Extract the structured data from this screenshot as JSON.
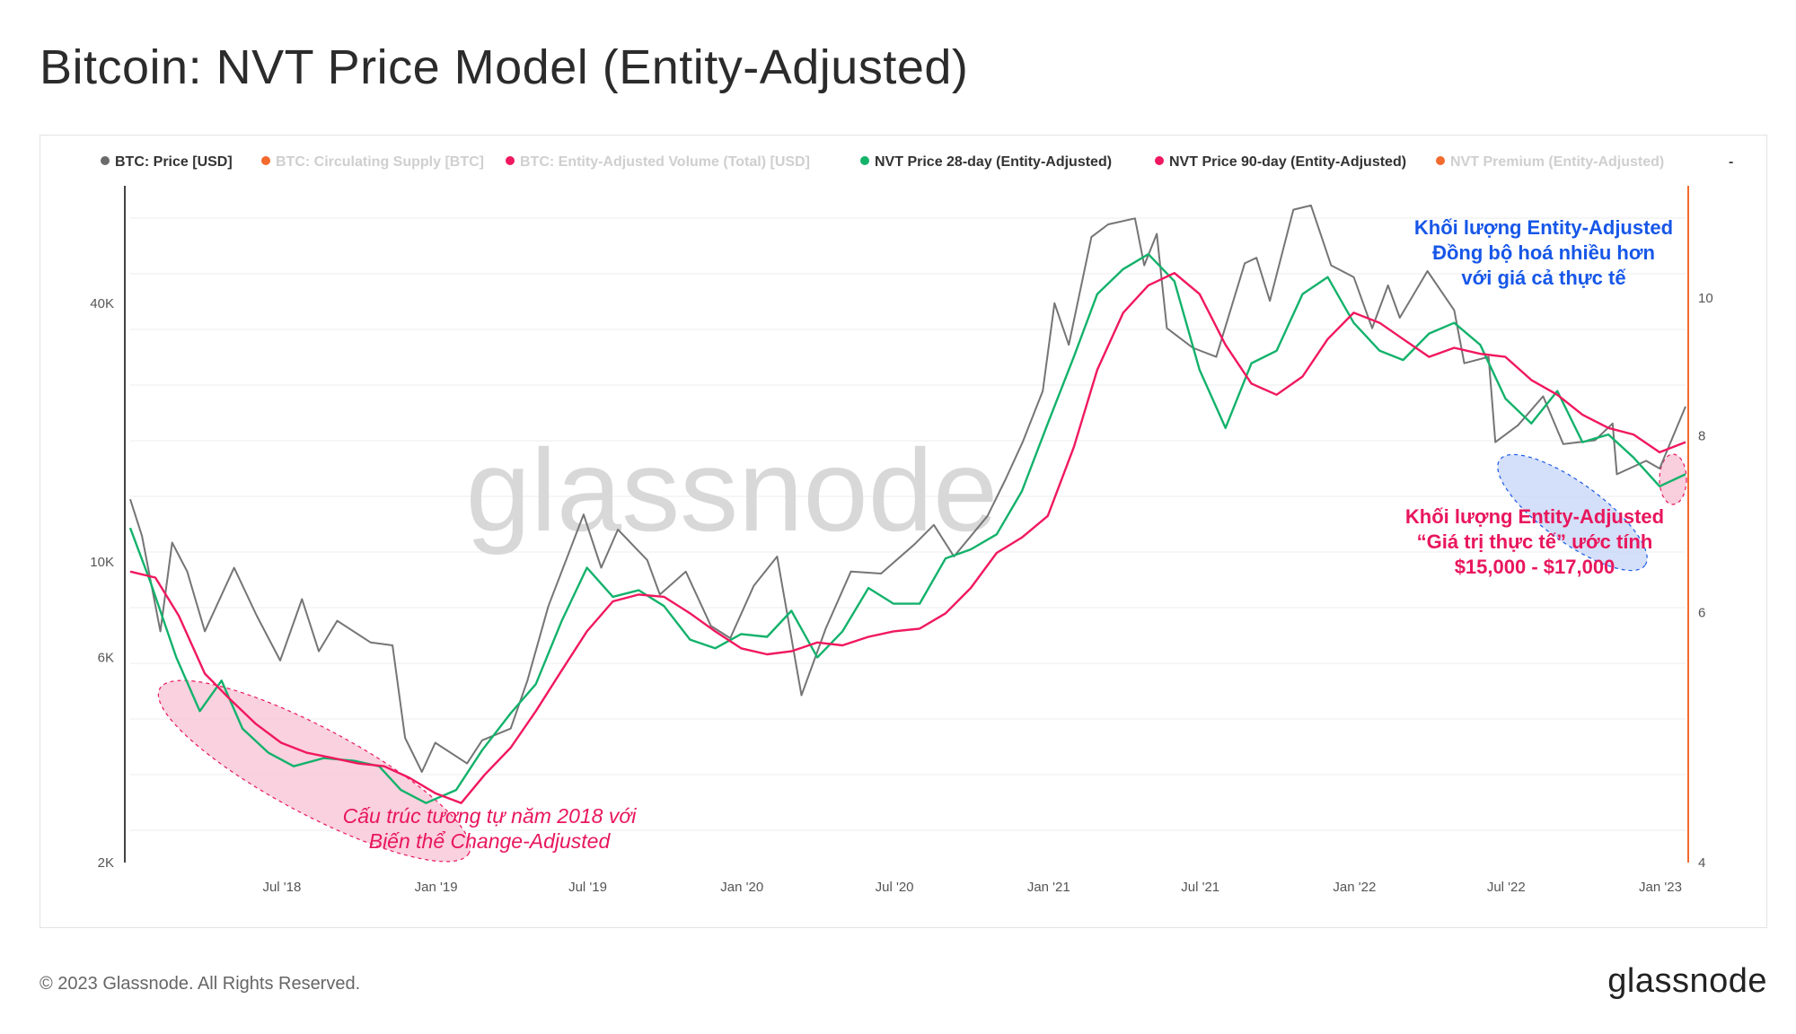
{
  "title": "Bitcoin: NVT Price Model (Entity-Adjusted)",
  "footer": {
    "copyright": "© 2023 Glassnode. All Rights Reserved.",
    "logo": "glassnode"
  },
  "watermark": "glassnode",
  "colors": {
    "price": "#757575",
    "nvt28": "#13b26b",
    "nvt90": "#f0185e",
    "premium_axis": "#f26a2e",
    "blue_anno": "#1757e8",
    "pink_anno": "#e8175d"
  },
  "legend": [
    {
      "label": "BTC: Price [USD]",
      "color": "#6b6b6b",
      "active": true
    },
    {
      "label": "BTC: Circulating Supply [BTC]",
      "color": "#f26a2e",
      "active": false
    },
    {
      "label": "BTC: Entity-Adjusted Volume (Total) [USD]",
      "color": "#f0185e",
      "active": false
    },
    {
      "label": "NVT Price 28-day (Entity-Adjusted)",
      "color": "#13b26b",
      "active": true
    },
    {
      "label": "NVT Price 90-day (Entity-Adjusted)",
      "color": "#f0185e",
      "active": true
    },
    {
      "label": "NVT Premium (Entity-Adjusted)",
      "color": "#f26a2e",
      "active": false
    }
  ],
  "legend_more": "-",
  "annotations": {
    "left_italic": [
      "Cấu trúc tương tự năm 2018 với",
      "Biến thể Change-Adjusted"
    ],
    "blue": [
      "Khối lượng Entity-Adjusted",
      "Đồng bộ hoá nhiều hơn",
      "với giá cả thực tế"
    ],
    "pink": [
      "Khối lượng Entity-Adjusted",
      "“Giá trị thực tế” ước tính",
      "$15,000 -  $17,000"
    ]
  },
  "chart_data": {
    "type": "line",
    "title": "Bitcoin: NVT Price Model (Entity-Adjusted)",
    "y_scale": "log",
    "x_range": [
      "2018-01-01",
      "2023-01-31"
    ],
    "x_ticks": [
      {
        "date": "2018-07-01",
        "label": "Jul '18"
      },
      {
        "date": "2019-01-01",
        "label": "Jan '19"
      },
      {
        "date": "2019-07-01",
        "label": "Jul '19"
      },
      {
        "date": "2020-01-01",
        "label": "Jan '20"
      },
      {
        "date": "2020-07-01",
        "label": "Jul '20"
      },
      {
        "date": "2021-01-01",
        "label": "Jan '21"
      },
      {
        "date": "2021-07-01",
        "label": "Jul '21"
      },
      {
        "date": "2022-01-01",
        "label": "Jan '22"
      },
      {
        "date": "2022-07-01",
        "label": "Jul '22"
      },
      {
        "date": "2023-01-01",
        "label": "Jan '23"
      }
    ],
    "y_left": {
      "scale": "log",
      "range": [
        2000,
        75000
      ],
      "ticks": [
        {
          "v": 2000,
          "label": "2K"
        },
        {
          "v": 6000,
          "label": "6K"
        },
        {
          "v": 10000,
          "label": "10K"
        },
        {
          "v": 40000,
          "label": "40K"
        }
      ]
    },
    "y_right": {
      "scale": "log",
      "range": [
        4,
        12
      ],
      "ticks": [
        {
          "v": 4,
          "label": "4"
        },
        {
          "v": 6,
          "label": "6"
        },
        {
          "v": 8,
          "label": "8"
        },
        {
          "v": 10,
          "label": "10"
        }
      ]
    },
    "series": [
      {
        "name": "BTC: Price [USD]",
        "color": "#757575",
        "width": 2,
        "points": [
          [
            "2018-01-01",
            14000
          ],
          [
            "2018-01-15",
            11500
          ],
          [
            "2018-02-06",
            6900
          ],
          [
            "2018-02-20",
            11100
          ],
          [
            "2018-03-10",
            9500
          ],
          [
            "2018-03-31",
            6900
          ],
          [
            "2018-05-05",
            9700
          ],
          [
            "2018-06-01",
            7500
          ],
          [
            "2018-06-29",
            5900
          ],
          [
            "2018-07-25",
            8200
          ],
          [
            "2018-08-14",
            6200
          ],
          [
            "2018-09-05",
            7300
          ],
          [
            "2018-10-15",
            6500
          ],
          [
            "2018-11-10",
            6400
          ],
          [
            "2018-11-25",
            3900
          ],
          [
            "2018-12-15",
            3250
          ],
          [
            "2018-12-31",
            3800
          ],
          [
            "2019-02-07",
            3400
          ],
          [
            "2019-02-25",
            3850
          ],
          [
            "2019-03-31",
            4100
          ],
          [
            "2019-04-20",
            5300
          ],
          [
            "2019-05-15",
            7900
          ],
          [
            "2019-06-26",
            12900
          ],
          [
            "2019-07-17",
            9700
          ],
          [
            "2019-08-06",
            11900
          ],
          [
            "2019-09-10",
            10100
          ],
          [
            "2019-09-25",
            8400
          ],
          [
            "2019-10-26",
            9500
          ],
          [
            "2019-11-25",
            7100
          ],
          [
            "2019-12-18",
            6650
          ],
          [
            "2020-01-15",
            8800
          ],
          [
            "2020-02-12",
            10300
          ],
          [
            "2020-03-12",
            4900
          ],
          [
            "2020-04-10",
            7000
          ],
          [
            "2020-05-10",
            9500
          ],
          [
            "2020-06-15",
            9400
          ],
          [
            "2020-07-25",
            11000
          ],
          [
            "2020-08-17",
            12200
          ],
          [
            "2020-09-10",
            10300
          ],
          [
            "2020-10-20",
            12800
          ],
          [
            "2020-11-10",
            15500
          ],
          [
            "2020-12-01",
            19000
          ],
          [
            "2020-12-25",
            25000
          ],
          [
            "2021-01-08",
            40000
          ],
          [
            "2021-01-25",
            32000
          ],
          [
            "2021-02-21",
            57000
          ],
          [
            "2021-03-13",
            61000
          ],
          [
            "2021-04-14",
            63000
          ],
          [
            "2021-04-25",
            49000
          ],
          [
            "2021-05-10",
            58000
          ],
          [
            "2021-05-22",
            35000
          ],
          [
            "2021-06-22",
            31500
          ],
          [
            "2021-07-20",
            30000
          ],
          [
            "2021-08-23",
            49500
          ],
          [
            "2021-09-06",
            51000
          ],
          [
            "2021-09-22",
            40500
          ],
          [
            "2021-10-20",
            66000
          ],
          [
            "2021-11-10",
            67500
          ],
          [
            "2021-12-04",
            49000
          ],
          [
            "2021-12-31",
            46000
          ],
          [
            "2022-01-22",
            35000
          ],
          [
            "2022-02-10",
            44000
          ],
          [
            "2022-02-24",
            37000
          ],
          [
            "2022-03-29",
            47500
          ],
          [
            "2022-04-30",
            38500
          ],
          [
            "2022-05-12",
            29000
          ],
          [
            "2022-06-10",
            30000
          ],
          [
            "2022-06-18",
            19000
          ],
          [
            "2022-07-15",
            20800
          ],
          [
            "2022-08-14",
            24300
          ],
          [
            "2022-09-07",
            18800
          ],
          [
            "2022-10-15",
            19200
          ],
          [
            "2022-11-05",
            21000
          ],
          [
            "2022-11-10",
            16000
          ],
          [
            "2022-12-15",
            17200
          ],
          [
            "2022-12-31",
            16500
          ],
          [
            "2023-01-31",
            23000
          ]
        ]
      },
      {
        "name": "NVT Price 28-day (Entity-Adjusted)",
        "color": "#13b26b",
        "width": 2.4,
        "points": [
          [
            "2018-01-01",
            12000
          ],
          [
            "2018-01-25",
            9000
          ],
          [
            "2018-02-25",
            6000
          ],
          [
            "2018-03-25",
            4500
          ],
          [
            "2018-04-20",
            5300
          ],
          [
            "2018-05-15",
            4100
          ],
          [
            "2018-06-15",
            3600
          ],
          [
            "2018-07-15",
            3350
          ],
          [
            "2018-08-20",
            3500
          ],
          [
            "2018-09-25",
            3450
          ],
          [
            "2018-10-25",
            3350
          ],
          [
            "2018-11-20",
            2950
          ],
          [
            "2018-12-20",
            2750
          ],
          [
            "2019-01-25",
            2950
          ],
          [
            "2019-02-25",
            3650
          ],
          [
            "2019-03-31",
            4450
          ],
          [
            "2019-04-30",
            5200
          ],
          [
            "2019-05-31",
            7300
          ],
          [
            "2019-06-30",
            9700
          ],
          [
            "2019-07-31",
            8300
          ],
          [
            "2019-08-31",
            8600
          ],
          [
            "2019-09-30",
            7900
          ],
          [
            "2019-10-31",
            6600
          ],
          [
            "2019-11-30",
            6300
          ],
          [
            "2019-12-31",
            6800
          ],
          [
            "2020-01-31",
            6700
          ],
          [
            "2020-02-29",
            7700
          ],
          [
            "2020-03-31",
            6000
          ],
          [
            "2020-04-30",
            6900
          ],
          [
            "2020-05-31",
            8700
          ],
          [
            "2020-06-30",
            8000
          ],
          [
            "2020-07-31",
            8000
          ],
          [
            "2020-08-31",
            10200
          ],
          [
            "2020-09-30",
            10700
          ],
          [
            "2020-10-31",
            11600
          ],
          [
            "2020-11-30",
            14600
          ],
          [
            "2020-12-31",
            21000
          ],
          [
            "2021-01-31",
            30000
          ],
          [
            "2021-02-28",
            42000
          ],
          [
            "2021-03-31",
            48000
          ],
          [
            "2021-04-30",
            52000
          ],
          [
            "2021-05-31",
            45000
          ],
          [
            "2021-06-30",
            28000
          ],
          [
            "2021-07-31",
            20500
          ],
          [
            "2021-08-31",
            29000
          ],
          [
            "2021-09-30",
            31000
          ],
          [
            "2021-10-31",
            42000
          ],
          [
            "2021-11-30",
            46000
          ],
          [
            "2021-12-31",
            36000
          ],
          [
            "2022-01-31",
            31000
          ],
          [
            "2022-02-28",
            29500
          ],
          [
            "2022-03-31",
            34000
          ],
          [
            "2022-04-30",
            36000
          ],
          [
            "2022-05-31",
            32000
          ],
          [
            "2022-06-30",
            24000
          ],
          [
            "2022-07-31",
            21000
          ],
          [
            "2022-08-31",
            25000
          ],
          [
            "2022-09-30",
            19000
          ],
          [
            "2022-10-31",
            19800
          ],
          [
            "2022-11-30",
            17500
          ],
          [
            "2022-12-31",
            15000
          ],
          [
            "2023-01-31",
            16000
          ]
        ]
      },
      {
        "name": "NVT Price 90-day (Entity-Adjusted)",
        "color": "#f0185e",
        "width": 2.4,
        "points": [
          [
            "2018-01-01",
            9500
          ],
          [
            "2018-01-31",
            9200
          ],
          [
            "2018-02-28",
            7500
          ],
          [
            "2018-03-31",
            5500
          ],
          [
            "2018-04-30",
            4800
          ],
          [
            "2018-05-31",
            4200
          ],
          [
            "2018-06-30",
            3800
          ],
          [
            "2018-07-31",
            3600
          ],
          [
            "2018-08-31",
            3500
          ],
          [
            "2018-09-30",
            3400
          ],
          [
            "2018-10-31",
            3350
          ],
          [
            "2018-11-30",
            3150
          ],
          [
            "2018-12-31",
            2900
          ],
          [
            "2019-01-31",
            2750
          ],
          [
            "2019-02-28",
            3200
          ],
          [
            "2019-03-31",
            3700
          ],
          [
            "2019-04-30",
            4500
          ],
          [
            "2019-05-31",
            5600
          ],
          [
            "2019-06-30",
            6900
          ],
          [
            "2019-07-31",
            8100
          ],
          [
            "2019-08-31",
            8400
          ],
          [
            "2019-09-30",
            8300
          ],
          [
            "2019-10-31",
            7600
          ],
          [
            "2019-11-30",
            6900
          ],
          [
            "2019-12-31",
            6300
          ],
          [
            "2020-01-31",
            6100
          ],
          [
            "2020-02-29",
            6200
          ],
          [
            "2020-03-31",
            6500
          ],
          [
            "2020-04-30",
            6400
          ],
          [
            "2020-05-31",
            6700
          ],
          [
            "2020-06-30",
            6900
          ],
          [
            "2020-07-31",
            7000
          ],
          [
            "2020-08-31",
            7600
          ],
          [
            "2020-09-30",
            8700
          ],
          [
            "2020-10-31",
            10500
          ],
          [
            "2020-11-30",
            11400
          ],
          [
            "2020-12-31",
            12800
          ],
          [
            "2021-01-31",
            18500
          ],
          [
            "2021-02-28",
            28000
          ],
          [
            "2021-03-31",
            38000
          ],
          [
            "2021-04-30",
            44000
          ],
          [
            "2021-05-31",
            47000
          ],
          [
            "2021-06-30",
            42000
          ],
          [
            "2021-07-31",
            32000
          ],
          [
            "2021-08-31",
            26000
          ],
          [
            "2021-09-30",
            24500
          ],
          [
            "2021-10-31",
            27000
          ],
          [
            "2021-11-30",
            33000
          ],
          [
            "2021-12-31",
            38000
          ],
          [
            "2022-01-31",
            36000
          ],
          [
            "2022-02-28",
            33000
          ],
          [
            "2022-03-31",
            30000
          ],
          [
            "2022-04-30",
            31500
          ],
          [
            "2022-05-31",
            30500
          ],
          [
            "2022-06-30",
            30000
          ],
          [
            "2022-07-31",
            26500
          ],
          [
            "2022-08-31",
            24500
          ],
          [
            "2022-09-30",
            22000
          ],
          [
            "2022-10-31",
            20500
          ],
          [
            "2022-11-30",
            19800
          ],
          [
            "2022-12-31",
            18000
          ],
          [
            "2023-01-31",
            19000
          ]
        ]
      }
    ]
  }
}
